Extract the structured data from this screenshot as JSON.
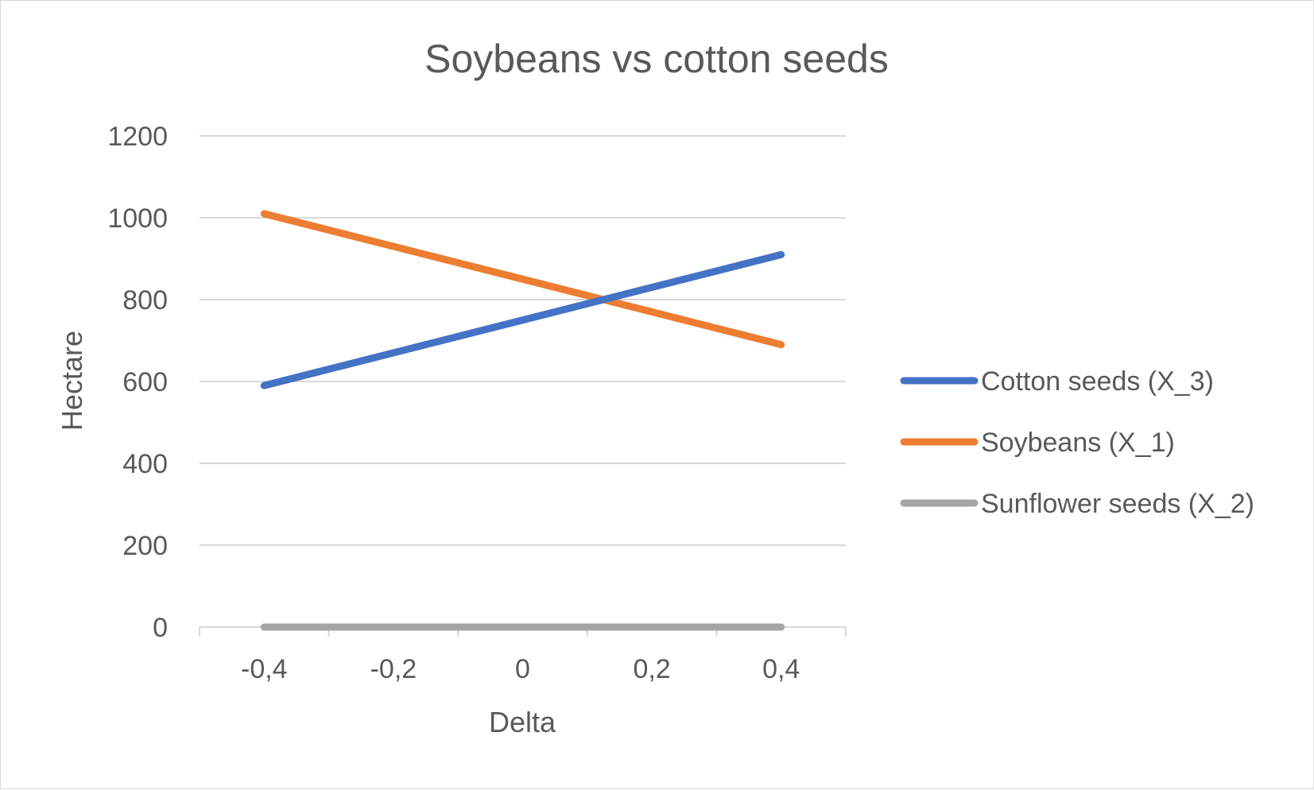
{
  "chart_data": {
    "type": "line",
    "title": "Soybeans vs cotton seeds",
    "xlabel": "Delta",
    "ylabel": "Hectare",
    "x": [
      -0.4,
      0.4
    ],
    "x_tick_labels": [
      "-0,4",
      "-0,2",
      "0",
      "0,2",
      "0,4"
    ],
    "x_ticks": [
      -0.4,
      -0.2,
      0,
      0.2,
      0.4
    ],
    "y_ticks": [
      0,
      200,
      400,
      600,
      800,
      1000,
      1200
    ],
    "y_tick_labels": [
      "0",
      "200",
      "400",
      "600",
      "800",
      "1000",
      "1200"
    ],
    "ylim": [
      0,
      1200
    ],
    "xlim": [
      -0.5,
      0.5
    ],
    "grid": true,
    "legend_position": "right",
    "series": [
      {
        "name": "Cotton seeds (X_3)",
        "color": "#4472c4",
        "values": [
          590,
          910
        ]
      },
      {
        "name": "Soybeans (X_1)",
        "color": "#ed7d31",
        "values": [
          1010,
          690
        ]
      },
      {
        "name": "Sunflower seeds (X_2)",
        "color": "#a5a5a5",
        "values": [
          0,
          0
        ]
      }
    ]
  }
}
